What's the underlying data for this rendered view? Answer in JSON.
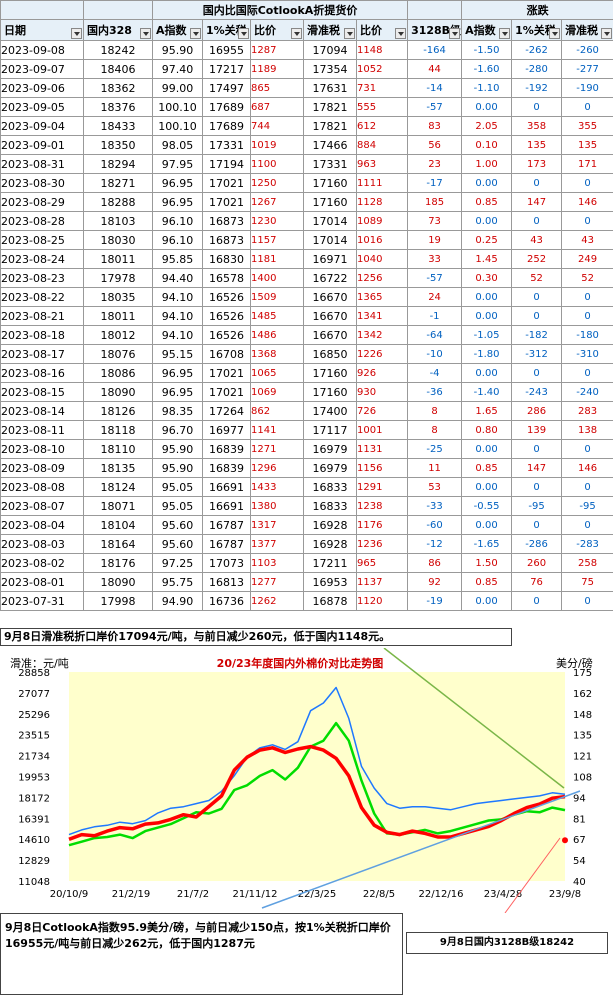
{
  "header": {
    "group_left": "国内比国际CotlookA折提货价",
    "group_right": "涨跌",
    "columns": [
      "日期",
      "国内328",
      "A指数",
      "1%关税",
      "比价",
      "滑准税",
      "比价",
      "3128B级",
      "A指数",
      "1%关税",
      "滑准税"
    ]
  },
  "rows": [
    [
      "2023-09-08",
      "18242",
      "95.90",
      "16955",
      "1287",
      "17094",
      "1148",
      "-164",
      "-1.50",
      "-262",
      "-260"
    ],
    [
      "2023-09-07",
      "18406",
      "97.40",
      "17217",
      "1189",
      "17354",
      "1052",
      "44",
      "-1.60",
      "-280",
      "-277"
    ],
    [
      "2023-09-06",
      "18362",
      "99.00",
      "17497",
      "865",
      "17631",
      "731",
      "-14",
      "-1.10",
      "-192",
      "-190"
    ],
    [
      "2023-09-05",
      "18376",
      "100.10",
      "17689",
      "687",
      "17821",
      "555",
      "-57",
      "0.00",
      "0",
      "0"
    ],
    [
      "2023-09-04",
      "18433",
      "100.10",
      "17689",
      "744",
      "17821",
      "612",
      "83",
      "2.05",
      "358",
      "355"
    ],
    [
      "2023-09-01",
      "18350",
      "98.05",
      "17331",
      "1019",
      "17466",
      "884",
      "56",
      "0.10",
      "135",
      "135"
    ],
    [
      "2023-08-31",
      "18294",
      "97.95",
      "17194",
      "1100",
      "17331",
      "963",
      "23",
      "1.00",
      "173",
      "171"
    ],
    [
      "2023-08-30",
      "18271",
      "96.95",
      "17021",
      "1250",
      "17160",
      "1111",
      "-17",
      "0.00",
      "0",
      "0"
    ],
    [
      "2023-08-29",
      "18288",
      "96.95",
      "17021",
      "1267",
      "17160",
      "1128",
      "185",
      "0.85",
      "147",
      "146"
    ],
    [
      "2023-08-28",
      "18103",
      "96.10",
      "16873",
      "1230",
      "17014",
      "1089",
      "73",
      "0.00",
      "0",
      "0"
    ],
    [
      "2023-08-25",
      "18030",
      "96.10",
      "16873",
      "1157",
      "17014",
      "1016",
      "19",
      "0.25",
      "43",
      "43"
    ],
    [
      "2023-08-24",
      "18011",
      "95.85",
      "16830",
      "1181",
      "16971",
      "1040",
      "33",
      "1.45",
      "252",
      "249"
    ],
    [
      "2023-08-23",
      "17978",
      "94.40",
      "16578",
      "1400",
      "16722",
      "1256",
      "-57",
      "0.30",
      "52",
      "52"
    ],
    [
      "2023-08-22",
      "18035",
      "94.10",
      "16526",
      "1509",
      "16670",
      "1365",
      "24",
      "0.00",
      "0",
      "0"
    ],
    [
      "2023-08-21",
      "18011",
      "94.10",
      "16526",
      "1485",
      "16670",
      "1341",
      "-1",
      "0.00",
      "0",
      "0"
    ],
    [
      "2023-08-18",
      "18012",
      "94.10",
      "16526",
      "1486",
      "16670",
      "1342",
      "-64",
      "-1.05",
      "-182",
      "-180"
    ],
    [
      "2023-08-17",
      "18076",
      "95.15",
      "16708",
      "1368",
      "16850",
      "1226",
      "-10",
      "-1.80",
      "-312",
      "-310"
    ],
    [
      "2023-08-16",
      "18086",
      "96.95",
      "17021",
      "1065",
      "17160",
      "926",
      "-4",
      "0.00",
      "0",
      "0"
    ],
    [
      "2023-08-15",
      "18090",
      "96.95",
      "17021",
      "1069",
      "17160",
      "930",
      "-36",
      "-1.40",
      "-243",
      "-240"
    ],
    [
      "2023-08-14",
      "18126",
      "98.35",
      "17264",
      "862",
      "17400",
      "726",
      "8",
      "1.65",
      "286",
      "283"
    ],
    [
      "2023-08-11",
      "18118",
      "96.70",
      "16977",
      "1141",
      "17117",
      "1001",
      "8",
      "0.80",
      "139",
      "138"
    ],
    [
      "2023-08-10",
      "18110",
      "95.90",
      "16839",
      "1271",
      "16979",
      "1131",
      "-25",
      "0.00",
      "0",
      "0"
    ],
    [
      "2023-08-09",
      "18135",
      "95.90",
      "16839",
      "1296",
      "16979",
      "1156",
      "11",
      "0.85",
      "147",
      "146"
    ],
    [
      "2023-08-08",
      "18124",
      "95.05",
      "16691",
      "1433",
      "16833",
      "1291",
      "53",
      "0.00",
      "0",
      "0"
    ],
    [
      "2023-08-07",
      "18071",
      "95.05",
      "16691",
      "1380",
      "16833",
      "1238",
      "-33",
      "-0.55",
      "-95",
      "-95"
    ],
    [
      "2023-08-04",
      "18104",
      "95.60",
      "16787",
      "1317",
      "16928",
      "1176",
      "-60",
      "0.00",
      "0",
      "0"
    ],
    [
      "2023-08-03",
      "18164",
      "95.60",
      "16787",
      "1377",
      "16928",
      "1236",
      "-12",
      "-1.65",
      "-286",
      "-283"
    ],
    [
      "2023-08-02",
      "18176",
      "97.25",
      "17073",
      "1103",
      "17211",
      "965",
      "86",
      "1.50",
      "260",
      "258"
    ],
    [
      "2023-08-01",
      "18090",
      "95.75",
      "16813",
      "1277",
      "16953",
      "1137",
      "92",
      "0.85",
      "76",
      "75"
    ],
    [
      "2023-07-31",
      "17998",
      "94.90",
      "16736",
      "1262",
      "16878",
      "1120",
      "-19",
      "0.00",
      "0",
      "0"
    ]
  ],
  "note_top": "9月8日滑准税折口岸价17094元/吨，与前日减少260元，低于国内1148元。",
  "note_bottom": "9月8日CotlookA指数95.9美分/磅，与前日减少150点，按1%关税折口岸价16955元/吨与前日减少262元，低于国内1287元",
  "note_right": "9月8日国内3128B级18242",
  "colors": {
    "domestic": "#ff0000",
    "sliding": "#00dd00",
    "a_index": "#1e78ff",
    "chart_bg": "#ffffcc"
  },
  "chart_data": {
    "type": "line",
    "title": "20/23年度国内外棉价对比走势图",
    "ylabel_left": "滑准：元/吨",
    "ylabel_right": "美分/磅",
    "x_ticks": [
      "20/10/9",
      "21/2/19",
      "21/7/2",
      "21/11/12",
      "22/3/25",
      "22/8/5",
      "22/12/16",
      "23/4/28",
      "23/9/8"
    ],
    "y_left_ticks": [
      "28858",
      "27077",
      "25296",
      "23515",
      "21734",
      "19953",
      "18172",
      "16391",
      "14610",
      "12829",
      "11048"
    ],
    "y_right_ticks": [
      "175",
      "162",
      "148",
      "135",
      "121",
      "108",
      "94",
      "81",
      "67",
      "54",
      "40"
    ],
    "ylim_left": [
      11048,
      28858
    ],
    "ylim_right": [
      40,
      175
    ],
    "grid": false,
    "series": [
      {
        "key": "domestic",
        "axis": "left",
        "values": [
          14600,
          15000,
          14900,
          15300,
          15600,
          15500,
          15900,
          16000,
          16300,
          16700,
          16500,
          17400,
          18300,
          20500,
          21600,
          22200,
          22400,
          22000,
          22300,
          22500,
          22200,
          21500,
          20000,
          17300,
          15800,
          15200,
          15000,
          15300,
          15100,
          14800,
          14800,
          15100,
          15400,
          15700,
          16200,
          16800,
          17300,
          17600,
          18100,
          18240
        ]
      },
      {
        "key": "sliding",
        "axis": "left",
        "values": [
          14100,
          14400,
          14700,
          14800,
          15000,
          14700,
          15300,
          15600,
          15900,
          16400,
          16900,
          16800,
          17200,
          18800,
          19200,
          20000,
          20500,
          19700,
          20700,
          22500,
          23000,
          24500,
          23000,
          19600,
          16800,
          15100,
          15000,
          15200,
          15400,
          15100,
          15300,
          15600,
          15900,
          16200,
          16300,
          16700,
          17000,
          16900,
          17300,
          17090
        ]
      },
      {
        "key": "a_index",
        "axis": "right",
        "values": [
          70,
          73,
          75,
          76,
          78,
          77,
          79,
          84,
          87,
          88,
          90,
          92,
          98,
          108,
          120,
          126,
          128,
          125,
          130,
          150,
          155,
          165,
          145,
          114,
          100,
          90,
          87,
          88,
          88,
          87,
          86,
          88,
          90,
          91,
          92,
          93,
          94,
          95,
          97,
          96
        ]
      }
    ]
  }
}
